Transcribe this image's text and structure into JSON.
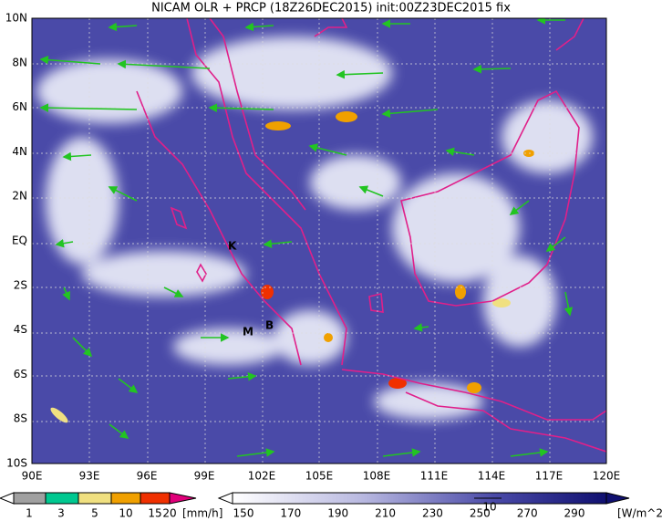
{
  "title": "NICAM OLR + PRCP (18Z26DEC2015) init:00Z23DEC2015 fix",
  "lat_labels": [
    "10N",
    "8N",
    "6N",
    "4N",
    "2N",
    "EQ",
    "2S",
    "4S",
    "6S",
    "8S",
    "10S"
  ],
  "lon_labels": [
    "90E",
    "93E",
    "96E",
    "99E",
    "102E",
    "105E",
    "108E",
    "111E",
    "114E",
    "117E",
    "120E"
  ],
  "markers": [
    "K",
    "M",
    "B"
  ],
  "precip_scale": {
    "labels": [
      "1",
      "3",
      "5",
      "10",
      "15",
      "20"
    ],
    "unit": "[mm/h]"
  },
  "olr_scale": {
    "labels": [
      "150",
      "170",
      "190",
      "210",
      "230",
      "250",
      "270",
      "290"
    ],
    "unit": "[W/m^2]"
  },
  "vector_ref": "10"
}
